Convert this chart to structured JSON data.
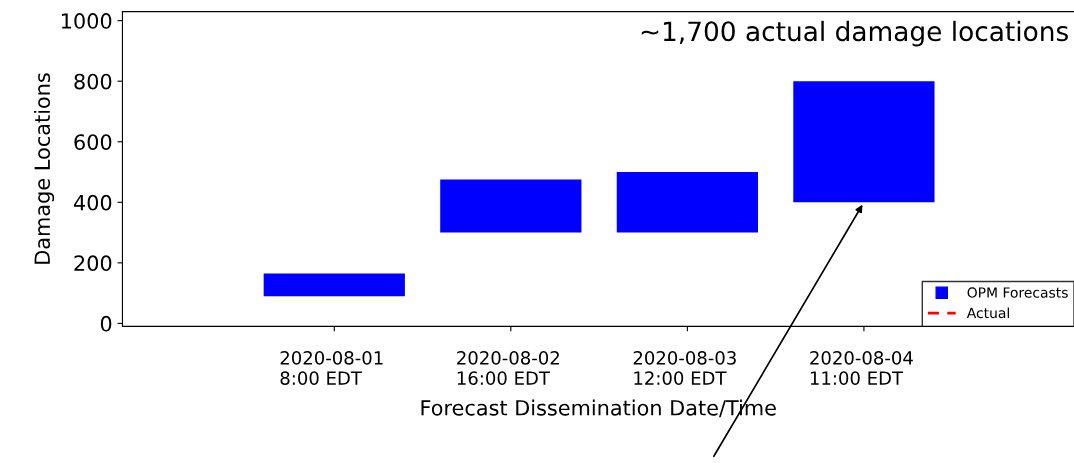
{
  "chart_data": {
    "type": "bar",
    "xlabel": "Forecast Dissemination Date/Time",
    "ylabel": "Damage Locations",
    "categories": [
      "2020-08-01\n8:00 EDT",
      "2020-08-02\n16:00 EDT",
      "2020-08-03\n12:00 EDT",
      "2020-08-04\n11:00 EDT"
    ],
    "series": [
      {
        "name": "OPM Forecasts",
        "color": "#0000ff",
        "values": [
          75,
          175,
          200,
          400
        ],
        "base": [
          90,
          300,
          300,
          400
        ]
      },
      {
        "name": "Actual",
        "type": "line",
        "color": "#ff0000",
        "line_style": "dashed",
        "values": [
          null,
          null,
          null,
          null
        ]
      }
    ],
    "ylim": [
      -10,
      1030
    ],
    "yticks": [
      0,
      200,
      400,
      600,
      800,
      1000
    ],
    "annotations": [
      "~1,700 actual damage locations"
    ],
    "legend": "bottom right",
    "grid": false
  }
}
